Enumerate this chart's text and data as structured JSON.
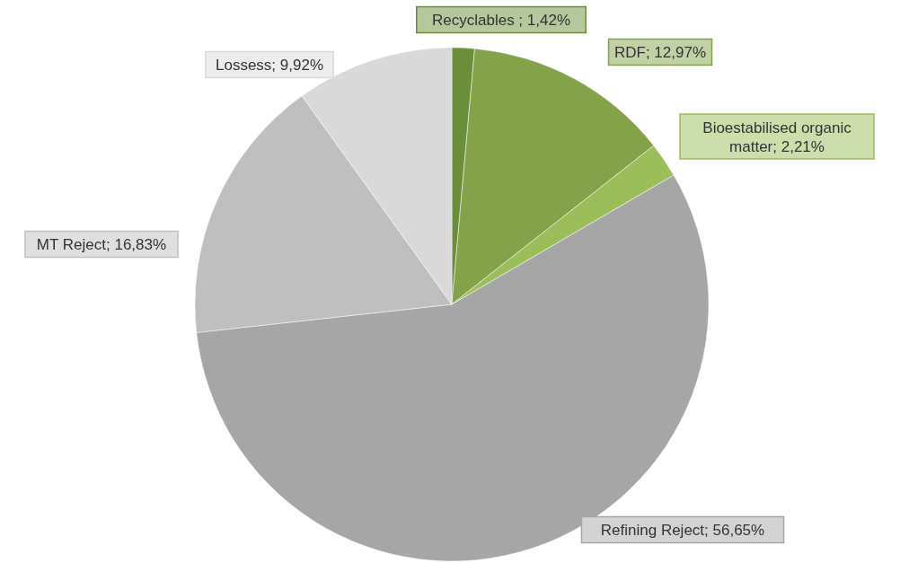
{
  "chart_data": {
    "type": "pie",
    "categories": [
      "Recyclables",
      "RDF",
      "Bioestabilised organic matter",
      "Refining Reject",
      "MT Reject",
      "Lossess"
    ],
    "values": [
      1.42,
      12.97,
      2.21,
      56.65,
      16.83,
      9.92
    ],
    "value_labels": [
      "1,42%",
      "12,97%",
      "2,21%",
      "56,65%",
      "16,83%",
      "9,92%"
    ],
    "colors": [
      "#6b8e3a",
      "#84a24a",
      "#9bbd5a",
      "#a6a6a6",
      "#bfbfbf",
      "#d9d9d9"
    ]
  }
}
